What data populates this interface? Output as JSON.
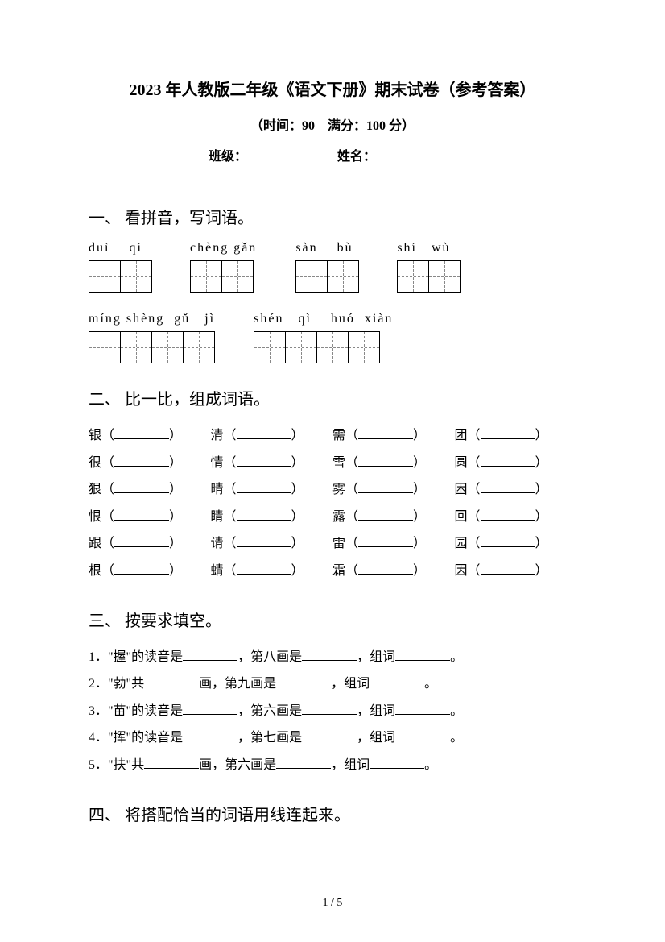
{
  "header": {
    "title": "2023 年人教版二年级《语文下册》期末试卷（参考答案）",
    "subtitle": "（时间：90　满分：100 分）",
    "class_label": "班级：",
    "name_label": "姓名："
  },
  "section1": {
    "title": "一、 看拼音，写词语。",
    "row1": [
      {
        "pinyin": "duì    qí",
        "boxes": 2
      },
      {
        "pinyin": "chèng gǎn",
        "boxes": 2
      },
      {
        "pinyin": "sàn    bù",
        "boxes": 2
      },
      {
        "pinyin": "shí   wù",
        "boxes": 2
      }
    ],
    "row2": [
      {
        "pinyin": "míng shèng  gǔ   jì",
        "boxes": 4
      },
      {
        "pinyin": "shén   qì    huó  xiàn",
        "boxes": 4
      }
    ]
  },
  "section2": {
    "title": "二、 比一比，组成词语。",
    "rows": [
      [
        "银",
        "清",
        "需",
        "团"
      ],
      [
        "很",
        "情",
        "雪",
        "圆"
      ],
      [
        "狠",
        "晴",
        "雾",
        "困"
      ],
      [
        "恨",
        "睛",
        "露",
        "回"
      ],
      [
        "跟",
        "请",
        "雷",
        "园"
      ],
      [
        "根",
        "蜻",
        "霜",
        "因"
      ]
    ]
  },
  "section3": {
    "title": "三、 按要求填空。",
    "items": [
      {
        "num": "1．",
        "text_parts": [
          "\"握\"的读音是",
          "，第八画是",
          "，组词",
          "。"
        ]
      },
      {
        "num": "2．",
        "text_parts": [
          "\"勃\"共",
          "画，第九画是",
          "，组词",
          "。"
        ]
      },
      {
        "num": "3．",
        "text_parts": [
          "\"苗\"的读音是",
          "，第六画是",
          "，组词",
          "。"
        ]
      },
      {
        "num": "4．",
        "text_parts": [
          "\"挥\"的读音是",
          "，第七画是",
          "，组词",
          "。"
        ]
      },
      {
        "num": "5．",
        "text_parts": [
          "\"扶\"共",
          "画，第六画是",
          "，组词",
          "。"
        ]
      }
    ]
  },
  "section4": {
    "title": "四、 将搭配恰当的词语用线连起来。"
  },
  "footer": {
    "page": "1 / 5"
  }
}
